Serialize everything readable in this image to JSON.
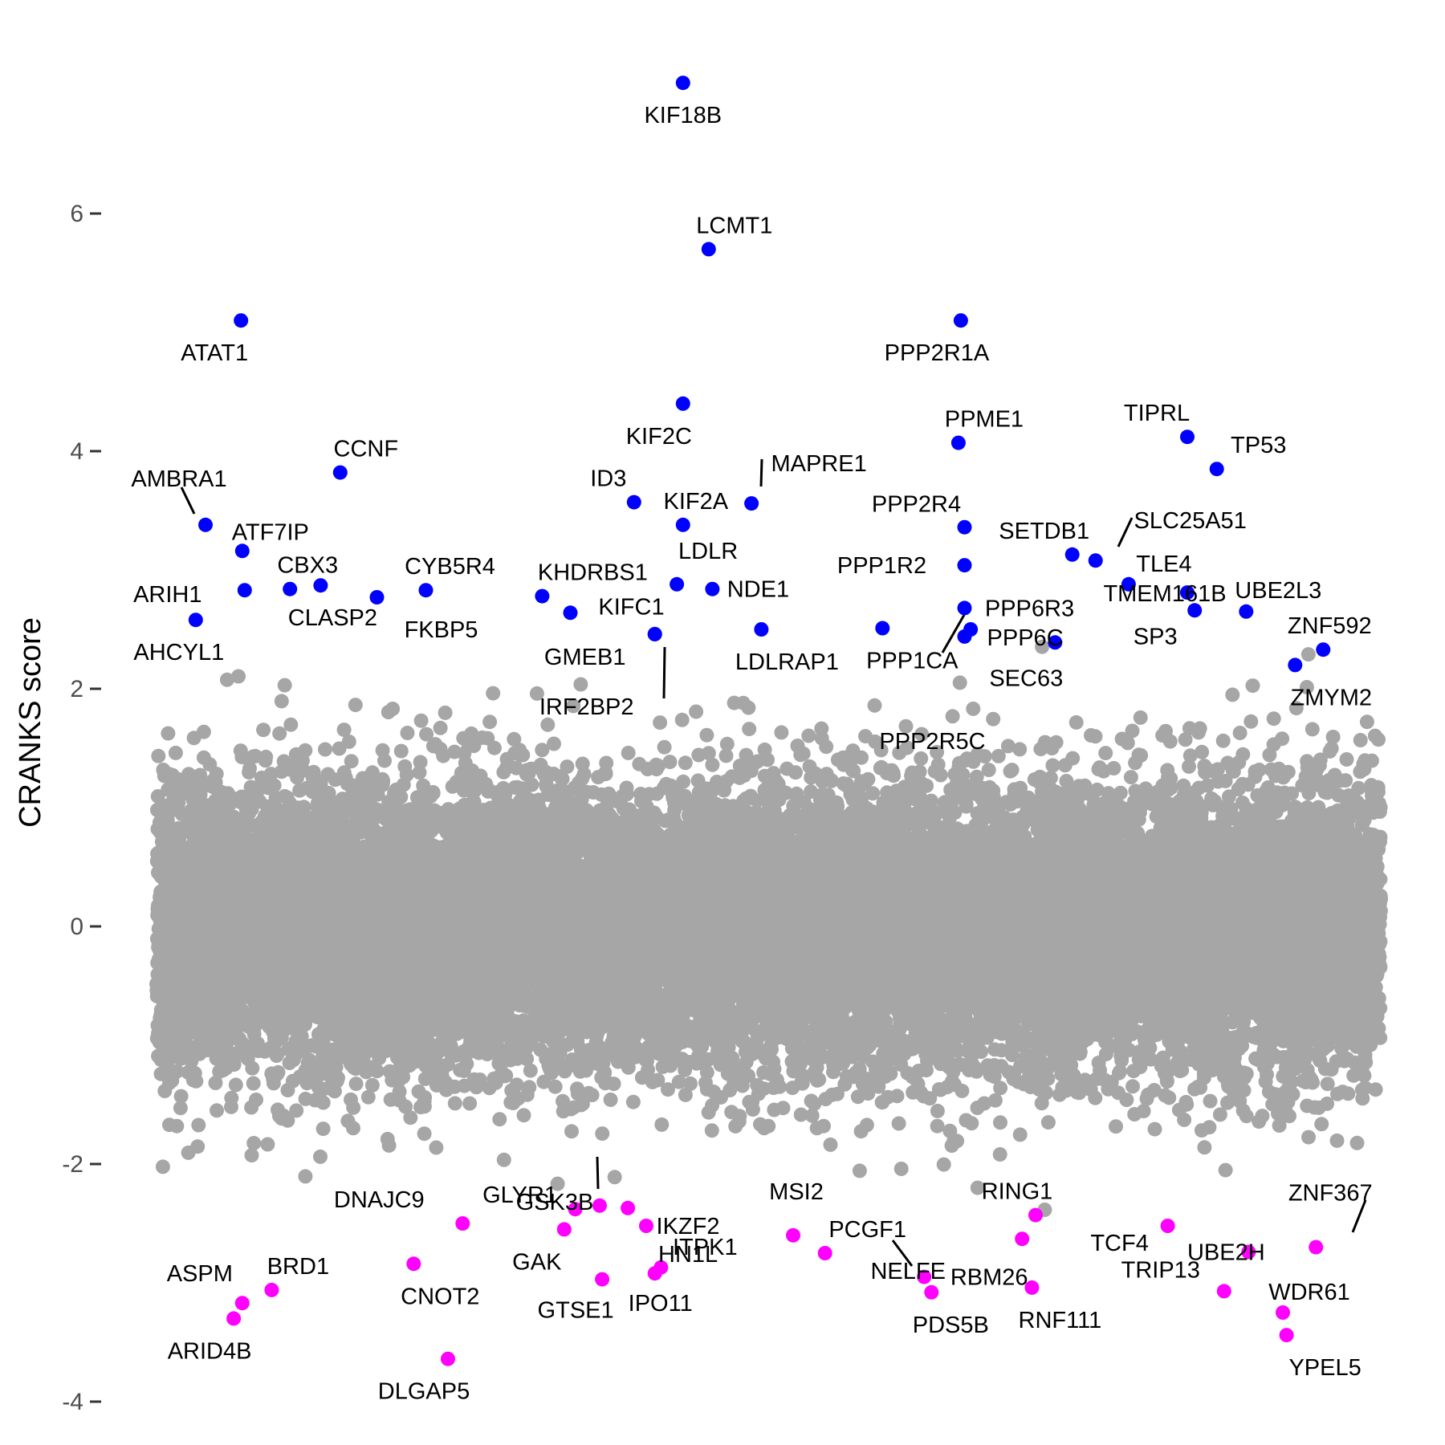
{
  "chart_data": {
    "type": "scatter",
    "ylabel": "CRANKS score",
    "xlabel": "",
    "ylim": [
      -4.0,
      7.5
    ],
    "y_ticks": [
      -4,
      -2,
      0,
      2,
      4,
      6
    ],
    "y_tick_labels": [
      "-4",
      "-2",
      "0",
      "2",
      "4",
      "6"
    ],
    "grid": false,
    "legend": "none",
    "colors": {
      "background": "#a6a6a6",
      "positive": "#0000ff",
      "negative": "#ff00ff"
    },
    "background_points": {
      "description_count": 18000,
      "y_mean": 0.0,
      "y_sd": 0.6
    },
    "series": [
      {
        "group": "positive",
        "points": [
          {
            "label": "KIF18B",
            "x": 0.43,
            "y": 7.1
          },
          {
            "label": "LCMT1",
            "x": 0.451,
            "y": 5.7
          },
          {
            "label": "ATAT1",
            "x": 0.069,
            "y": 5.1
          },
          {
            "label": "PPP2R1A",
            "x": 0.657,
            "y": 5.1
          },
          {
            "label": "KIF2C",
            "x": 0.43,
            "y": 4.4
          },
          {
            "label": "PPME1",
            "x": 0.655,
            "y": 4.07
          },
          {
            "label": "TIPRL",
            "x": 0.842,
            "y": 4.12
          },
          {
            "label": "TP53",
            "x": 0.866,
            "y": 3.85
          },
          {
            "label": "CCNF",
            "x": 0.15,
            "y": 3.82
          },
          {
            "label": "ID3",
            "x": 0.39,
            "y": 3.57
          },
          {
            "label": "MAPRE1",
            "x": 0.486,
            "y": 3.56
          },
          {
            "label": "KIF2A",
            "x": 0.43,
            "y": 3.38
          },
          {
            "label": "AMBRA1",
            "x": 0.04,
            "y": 3.38
          },
          {
            "label": "PPP2R4",
            "x": 0.66,
            "y": 3.36
          },
          {
            "label": "SETDB1",
            "x": 0.748,
            "y": 3.13
          },
          {
            "label": "SLC25A51",
            "x": 0.767,
            "y": 3.08
          },
          {
            "label": "ATF7IP",
            "x": 0.07,
            "y": 3.16
          },
          {
            "label": "PPP1R2",
            "x": 0.66,
            "y": 3.04
          },
          {
            "label": "TLE4",
            "x": 0.794,
            "y": 2.88
          },
          {
            "label": "CBX3",
            "x": 0.109,
            "y": 2.84
          },
          {
            "label": "CLASP2",
            "x": 0.134,
            "y": 2.87
          },
          {
            "label": "CYB5R4",
            "x": 0.22,
            "y": 2.83
          },
          {
            "label": "KHDRBS1",
            "x": 0.315,
            "y": 2.78
          },
          {
            "label": "LDLR",
            "x": 0.425,
            "y": 2.88
          },
          {
            "label": "NDE1",
            "x": 0.454,
            "y": 2.84
          },
          {
            "label": "PPP6R3",
            "x": 0.66,
            "y": 2.68
          },
          {
            "label": "UBE2L3",
            "x": 0.89,
            "y": 2.65
          },
          {
            "label": "ARIH1",
            "x": 0.072,
            "y": 2.83
          },
          {
            "label": "FKBP5",
            "x": 0.18,
            "y": 2.77
          },
          {
            "label": "KIFC1",
            "x": 0.338,
            "y": 2.64
          },
          {
            "label": "SP3",
            "x": 0.848,
            "y": 2.66
          },
          {
            "label": "AHCYL1",
            "x": 0.032,
            "y": 2.58
          },
          {
            "label": "GMEB1",
            "x": 0.407,
            "y": 2.46
          },
          {
            "label": "LDLRAP1",
            "x": 0.494,
            "y": 2.5
          },
          {
            "label": "PPP6C",
            "x": 0.665,
            "y": 2.5
          },
          {
            "label": "PPP1CA",
            "x": 0.593,
            "y": 2.51
          },
          {
            "label": "SEC63",
            "x": 0.734,
            "y": 2.39
          },
          {
            "label": "ZNF592",
            "x": 0.953,
            "y": 2.33
          },
          {
            "label": "IRF2BP2",
            "x": 0.407,
            "y": 2.46
          },
          {
            "label": "PPP2R5C",
            "x": 0.66,
            "y": 2.44
          },
          {
            "label": "TMEM161B",
            "x": 0.842,
            "y": 2.81
          },
          {
            "label": "ZMYM2",
            "x": 0.93,
            "y": 2.2
          }
        ]
      },
      {
        "group": "negative",
        "points": [
          {
            "label": "GSK3B",
            "x": 0.362,
            "y": -2.35
          },
          {
            "label": "HN1L",
            "x": 0.385,
            "y": -2.37
          },
          {
            "label": "MSI2",
            "x": 0.52,
            "y": -2.6
          },
          {
            "label": "RING1",
            "x": 0.718,
            "y": -2.43
          },
          {
            "label": "ZNF367",
            "x": 0.947,
            "y": -2.7
          },
          {
            "label": "DNAJC9",
            "x": 0.25,
            "y": -2.5
          },
          {
            "label": "GLYR1",
            "x": 0.342,
            "y": -2.38
          },
          {
            "label": "TCF4",
            "x": 0.826,
            "y": -2.52
          },
          {
            "label": "IKZF2",
            "x": 0.4,
            "y": -2.52
          },
          {
            "label": "PCGF1",
            "x": 0.546,
            "y": -2.75
          },
          {
            "label": "UBE2H",
            "x": 0.892,
            "y": -2.74
          },
          {
            "label": "GAK",
            "x": 0.333,
            "y": -2.55
          },
          {
            "label": "BRD1",
            "x": 0.094,
            "y": -3.06
          },
          {
            "label": "RBM26",
            "x": 0.627,
            "y": -2.95
          },
          {
            "label": "ITPK1",
            "x": 0.412,
            "y": -2.87
          },
          {
            "label": "ASPM",
            "x": 0.07,
            "y": -3.17
          },
          {
            "label": "CNOT2",
            "x": 0.21,
            "y": -2.84
          },
          {
            "label": "NELFE",
            "x": 0.707,
            "y": -2.63
          },
          {
            "label": "TRIP13",
            "x": 0.872,
            "y": -3.07
          },
          {
            "label": "WDR61",
            "x": 0.92,
            "y": -3.25
          },
          {
            "label": "GTSE1",
            "x": 0.364,
            "y": -2.97
          },
          {
            "label": "IPO11",
            "x": 0.407,
            "y": -2.92
          },
          {
            "label": "PDS5B",
            "x": 0.633,
            "y": -3.08
          },
          {
            "label": "RNF111",
            "x": 0.715,
            "y": -3.04
          },
          {
            "label": "ARID4B",
            "x": 0.063,
            "y": -3.3
          },
          {
            "label": "YPEL5",
            "x": 0.923,
            "y": -3.44
          },
          {
            "label": "DLGAP5",
            "x": 0.238,
            "y": -3.64
          }
        ]
      }
    ]
  }
}
